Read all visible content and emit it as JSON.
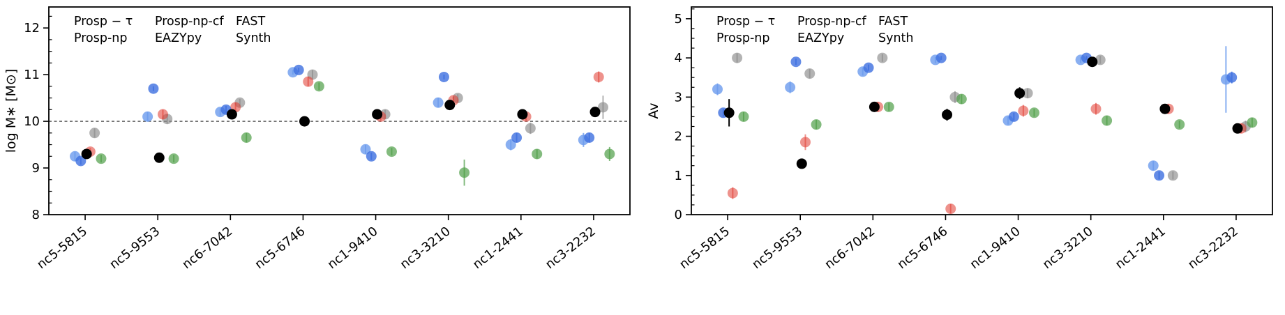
{
  "figure": {
    "background": "#ffffff",
    "axis_color": "#000000"
  },
  "chart_data": [
    {
      "id": "logm",
      "type": "scatter",
      "title": "",
      "xlabel": "",
      "ylabel": "log M∗ [M⊙]",
      "ylim": [
        8,
        12.45
      ],
      "yticks": [
        8,
        9,
        10,
        11,
        12
      ],
      "minor_step": 0.25,
      "hline": 10,
      "grid": false,
      "legend_position": "top-left",
      "legend_layout": [
        [
          0,
          1
        ],
        [
          2,
          3
        ],
        [
          4,
          5
        ]
      ],
      "categories": [
        "nc5-5815",
        "nc5-9553",
        "nc6-7042",
        "nc5-6746",
        "nc1-9410",
        "nc3-3210",
        "nc1-2441",
        "nc3-2232"
      ],
      "series": [
        {
          "name": "Prosp − τ",
          "color": "#6b9bee",
          "alpha": 0.8,
          "offset": -0.14,
          "z": 3,
          "values": [
            9.25,
            10.1,
            10.2,
            11.05,
            9.4,
            10.4,
            9.5,
            9.6
          ],
          "errors": [
            0.1,
            0.1,
            0.08,
            0.05,
            0.1,
            0.1,
            0.12,
            0.15
          ]
        },
        {
          "name": "Prosp-np",
          "color": "#3d6fe0",
          "alpha": 0.8,
          "offset": -0.06,
          "z": 4,
          "values": [
            9.15,
            10.7,
            10.25,
            11.1,
            9.25,
            10.95,
            9.65,
            9.65
          ],
          "errors": [
            0.08,
            0.05,
            0.08,
            0.05,
            0.08,
            0.05,
            0.1,
            0.1
          ]
        },
        {
          "name": "Prosp-np-cf",
          "color": "#000000",
          "alpha": 1.0,
          "offset": 0.02,
          "z": 6,
          "values": [
            9.3,
            9.22,
            10.15,
            10.0,
            10.15,
            10.35,
            10.15,
            10.2
          ],
          "errors": [
            0.05,
            0.05,
            0.08,
            0.1,
            0.05,
            0.08,
            0.05,
            0.05
          ]
        },
        {
          "name": "EAZYpy",
          "color": "#e0392e",
          "alpha": 0.55,
          "offset": 0.07,
          "z": 2,
          "values": [
            9.35,
            10.15,
            10.3,
            10.85,
            10.1,
            10.45,
            10.1,
            10.95
          ],
          "errors": [
            0.08,
            0.1,
            0.1,
            0.1,
            0.08,
            0.08,
            0.08,
            0.12
          ]
        },
        {
          "name": "FAST",
          "color": "#8a8a8a",
          "alpha": 0.65,
          "offset": 0.13,
          "z": 1,
          "values": [
            9.75,
            10.05,
            10.4,
            11.0,
            10.15,
            10.5,
            9.85,
            10.3
          ],
          "errors": [
            0.1,
            0.1,
            0.08,
            0.1,
            0.1,
            0.08,
            0.12,
            0.25
          ]
        },
        {
          "name": "Synth",
          "color": "#4e9e47",
          "alpha": 0.7,
          "offset": 0.22,
          "z": 1,
          "values": [
            9.2,
            9.2,
            9.65,
            10.75,
            9.35,
            8.9,
            9.3,
            9.3
          ],
          "errors": [
            0.08,
            0.08,
            0.1,
            0.08,
            0.08,
            0.28,
            0.1,
            0.15
          ]
        }
      ]
    },
    {
      "id": "av",
      "type": "scatter",
      "title": "",
      "xlabel": "",
      "ylabel": "Av",
      "ylim": [
        0,
        5.3
      ],
      "yticks": [
        0,
        1,
        2,
        3,
        4,
        5
      ],
      "minor_step": 0.25,
      "hline": null,
      "grid": false,
      "legend_position": "top-left",
      "legend_layout": [
        [
          0,
          1
        ],
        [
          2,
          3
        ],
        [
          4,
          5
        ]
      ],
      "categories": [
        "nc5-5815",
        "nc5-9553",
        "nc6-7042",
        "nc5-6746",
        "nc1-9410",
        "nc3-3210",
        "nc1-2441",
        "nc3-2232"
      ],
      "series": [
        {
          "name": "Prosp − τ",
          "color": "#6b9bee",
          "alpha": 0.8,
          "offset": -0.14,
          "z": 3,
          "values": [
            3.2,
            3.25,
            3.65,
            3.95,
            2.4,
            3.95,
            1.25,
            3.45
          ],
          "errors": [
            0.15,
            0.15,
            0.1,
            0.08,
            0.1,
            0.08,
            0.12,
            0.85
          ]
        },
        {
          "name": "Prosp-np",
          "color": "#3d6fe0",
          "alpha": 0.8,
          "offset": -0.06,
          "z": 4,
          "values": [
            2.6,
            3.9,
            3.75,
            4.0,
            2.5,
            4.0,
            1.0,
            3.5
          ],
          "errors": [
            0.1,
            0.08,
            0.08,
            0.05,
            0.1,
            0.05,
            0.1,
            0.15
          ]
        },
        {
          "name": "Prosp-np-cf",
          "color": "#000000",
          "alpha": 1.0,
          "offset": 0.02,
          "z": 6,
          "values": [
            2.6,
            1.3,
            2.75,
            2.55,
            3.1,
            3.9,
            2.7,
            2.2
          ],
          "errors": [
            0.35,
            0.1,
            0.1,
            0.15,
            0.15,
            0.12,
            0.12,
            0.1
          ]
        },
        {
          "name": "EAZYpy",
          "color": "#e0392e",
          "alpha": 0.55,
          "offset": 0.07,
          "z": 2,
          "values": [
            0.55,
            1.85,
            2.75,
            0.15,
            2.65,
            2.7,
            2.7,
            2.2
          ],
          "errors": [
            0.15,
            0.2,
            0.12,
            0.12,
            0.15,
            0.15,
            0.12,
            0.12
          ]
        },
        {
          "name": "FAST",
          "color": "#8a8a8a",
          "alpha": 0.65,
          "offset": 0.13,
          "z": 1,
          "values": [
            4.0,
            3.6,
            4.0,
            3.0,
            3.1,
            3.95,
            1.0,
            2.25
          ],
          "errors": [
            0.12,
            0.12,
            0.1,
            0.15,
            0.12,
            0.1,
            0.1,
            0.15
          ]
        },
        {
          "name": "Synth",
          "color": "#4e9e47",
          "alpha": 0.7,
          "offset": 0.22,
          "z": 1,
          "values": [
            2.5,
            2.3,
            2.75,
            2.95,
            2.6,
            2.4,
            2.3,
            2.35
          ],
          "errors": [
            0.12,
            0.12,
            0.1,
            0.12,
            0.1,
            0.12,
            0.1,
            0.12
          ]
        }
      ]
    }
  ]
}
